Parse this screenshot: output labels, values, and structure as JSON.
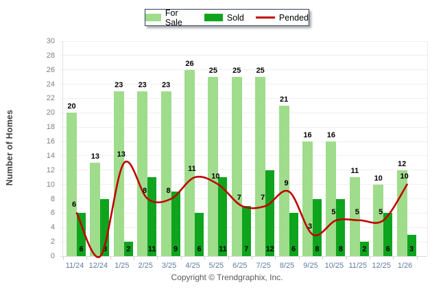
{
  "legend": {
    "items": [
      {
        "label": "For Sale",
        "type": "box",
        "color": "#9fdc8c"
      },
      {
        "label": "Sold",
        "type": "box",
        "color": "#0ea41e"
      },
      {
        "label": "Pended",
        "type": "line",
        "color": "#c10000"
      }
    ]
  },
  "footer": {
    "copyright": "Copyright © Trendgraphix, Inc."
  },
  "chart_data": {
    "type": "bar",
    "title": "",
    "xlabel": "",
    "ylabel": "Number of Homes",
    "ylim": [
      0,
      30
    ],
    "y_tick_step": 2,
    "grid": true,
    "legend_position": "top-center",
    "categories": [
      "11/24",
      "12/24",
      "1/25",
      "2/25",
      "3/25",
      "4/25",
      "5/25",
      "6/25",
      "7/25",
      "8/25",
      "9/25",
      "10/25",
      "11/25",
      "12/25",
      "1/26"
    ],
    "series": [
      {
        "name": "For Sale",
        "type": "bar",
        "color": "#9fdc8c",
        "values": [
          20,
          13,
          23,
          23,
          23,
          26,
          25,
          25,
          25,
          21,
          16,
          16,
          11,
          10,
          12
        ]
      },
      {
        "name": "Sold",
        "type": "bar",
        "color": "#0ea41e",
        "values": [
          6,
          8,
          2,
          11,
          9,
          6,
          11,
          7,
          12,
          6,
          8,
          8,
          2,
          6,
          3
        ]
      },
      {
        "name": "Pended",
        "type": "line",
        "color": "#c10000",
        "values": [
          6,
          0,
          13,
          8,
          8,
          11,
          10,
          7,
          7,
          9,
          3,
          5,
          5,
          5,
          10
        ],
        "hidden_value_labels": [
          1
        ]
      }
    ]
  }
}
